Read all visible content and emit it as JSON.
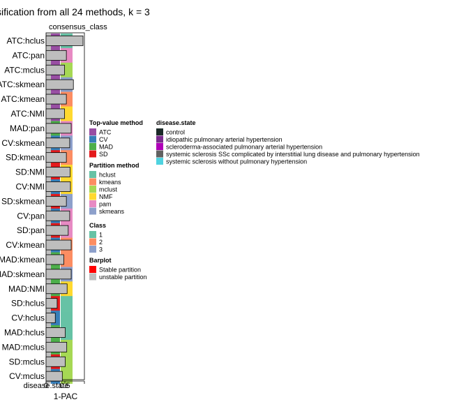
{
  "title": "ssification from all 24 methods, k = 3",
  "column_header": "consensus_class",
  "bottom_label": "disease.state",
  "xlabel": "1-PAC",
  "legends": {
    "top_value_method": {
      "title": "Top-value method",
      "items": [
        {
          "label": "ATC",
          "color": "#984EA3"
        },
        {
          "label": "CV",
          "color": "#377EB8"
        },
        {
          "label": "MAD",
          "color": "#4DAF4A"
        },
        {
          "label": "SD",
          "color": "#E41A1C"
        }
      ]
    },
    "partition_method": {
      "title": "Partition method",
      "items": [
        {
          "label": "hclust",
          "color": "#66C2A5"
        },
        {
          "label": "kmeans",
          "color": "#FC8D62"
        },
        {
          "label": "mclust",
          "color": "#A6D854"
        },
        {
          "label": "NMF",
          "color": "#FFD92F"
        },
        {
          "label": "pam",
          "color": "#E78AC3"
        },
        {
          "label": "skmeans",
          "color": "#8DA0CB"
        }
      ]
    },
    "class": {
      "title": "Class",
      "items": [
        {
          "label": "1",
          "color": "#66C2A5"
        },
        {
          "label": "2",
          "color": "#FC8D62"
        },
        {
          "label": "3",
          "color": "#8DA0CB"
        }
      ]
    },
    "barplot": {
      "title": "Barplot",
      "items": [
        {
          "label": "Stable partition",
          "color": "#FF0000"
        },
        {
          "label": "unstable partition",
          "color": "#BEBEBE"
        }
      ]
    },
    "disease_state": {
      "title": "disease.state",
      "items": [
        {
          "label": "control",
          "color": "#1B2A28"
        },
        {
          "label": "idiopathic pulmonary arterial hypertension",
          "color": "#7B2D8E"
        },
        {
          "label": "scleroderma-associated pulmonary arterial hypertension",
          "color": "#B000B8"
        },
        {
          "label": "systemic sclerosis SSc complicated by interstitial lung disease and pulmonary hypertension",
          "color": "#616161"
        },
        {
          "label": "systemic sclerosis without pulmonary hypertension",
          "color": "#4FD3E0"
        }
      ]
    }
  },
  "chart_data": {
    "type": "bar",
    "orientation": "horizontal",
    "xlabel": "1-PAC",
    "xlim": [
      0,
      1
    ],
    "grid": false,
    "legend_position": "right",
    "categories": [
      "ATC:hclust",
      "ATC:pam",
      "ATC:mclust",
      "ATC:skmeans",
      "ATC:kmeans",
      "ATC:NMF",
      "MAD:pam",
      "CV:skmeans",
      "SD:kmeans",
      "SD:NMF",
      "CV:NMF",
      "SD:skmeans",
      "CV:pam",
      "SD:pam",
      "CV:kmeans",
      "MAD:kmeans",
      "MAD:skmeans",
      "MAD:NMF",
      "SD:hclust",
      "CV:hclust",
      "MAD:hclust",
      "MAD:mclust",
      "SD:mclust",
      "CV:mclust"
    ],
    "tick_labels": [
      "ATC:hclus",
      "ATC:pan",
      "ATC:mclus",
      "ATC:skmean",
      "ATC:kmean",
      "ATC:NMI",
      "MAD:pan",
      "CV:skmean",
      "SD:kmean",
      "SD:NMI",
      "CV:NMI",
      "SD:skmean",
      "CV:pan",
      "SD:pan",
      "CV:kmean",
      "MAD:kmean",
      "MAD:skmean",
      "MAD:NMI",
      "SD:hclus",
      "CV:hclus",
      "MAD:hclus",
      "MAD:mclus",
      "SD:mclus",
      "CV:mclus"
    ],
    "top_value_method": [
      "ATC",
      "ATC",
      "ATC",
      "ATC",
      "ATC",
      "ATC",
      "MAD",
      "CV",
      "SD",
      "SD",
      "CV",
      "SD",
      "CV",
      "SD",
      "CV",
      "MAD",
      "MAD",
      "MAD",
      "SD",
      "CV",
      "MAD",
      "MAD",
      "SD",
      "CV"
    ],
    "partition_method": [
      "hclust",
      "pam",
      "mclust",
      "skmeans",
      "kmeans",
      "NMF",
      "pam",
      "skmeans",
      "kmeans",
      "NMF",
      "NMF",
      "skmeans",
      "pam",
      "pam",
      "kmeans",
      "kmeans",
      "skmeans",
      "NMF",
      "hclust",
      "hclust",
      "hclust",
      "mclust",
      "mclust",
      "mclust"
    ],
    "stable": [
      false,
      false,
      false,
      false,
      false,
      false,
      false,
      false,
      false,
      false,
      false,
      false,
      false,
      false,
      false,
      false,
      false,
      false,
      false,
      false,
      false,
      false,
      false,
      false
    ],
    "values": [
      1.0,
      0.55,
      0.5,
      0.74,
      0.55,
      0.5,
      0.68,
      0.64,
      0.55,
      0.65,
      0.66,
      0.55,
      0.64,
      0.6,
      0.68,
      0.48,
      0.68,
      0.57,
      0.3,
      0.25,
      0.52,
      0.56,
      0.52,
      0.44
    ]
  }
}
